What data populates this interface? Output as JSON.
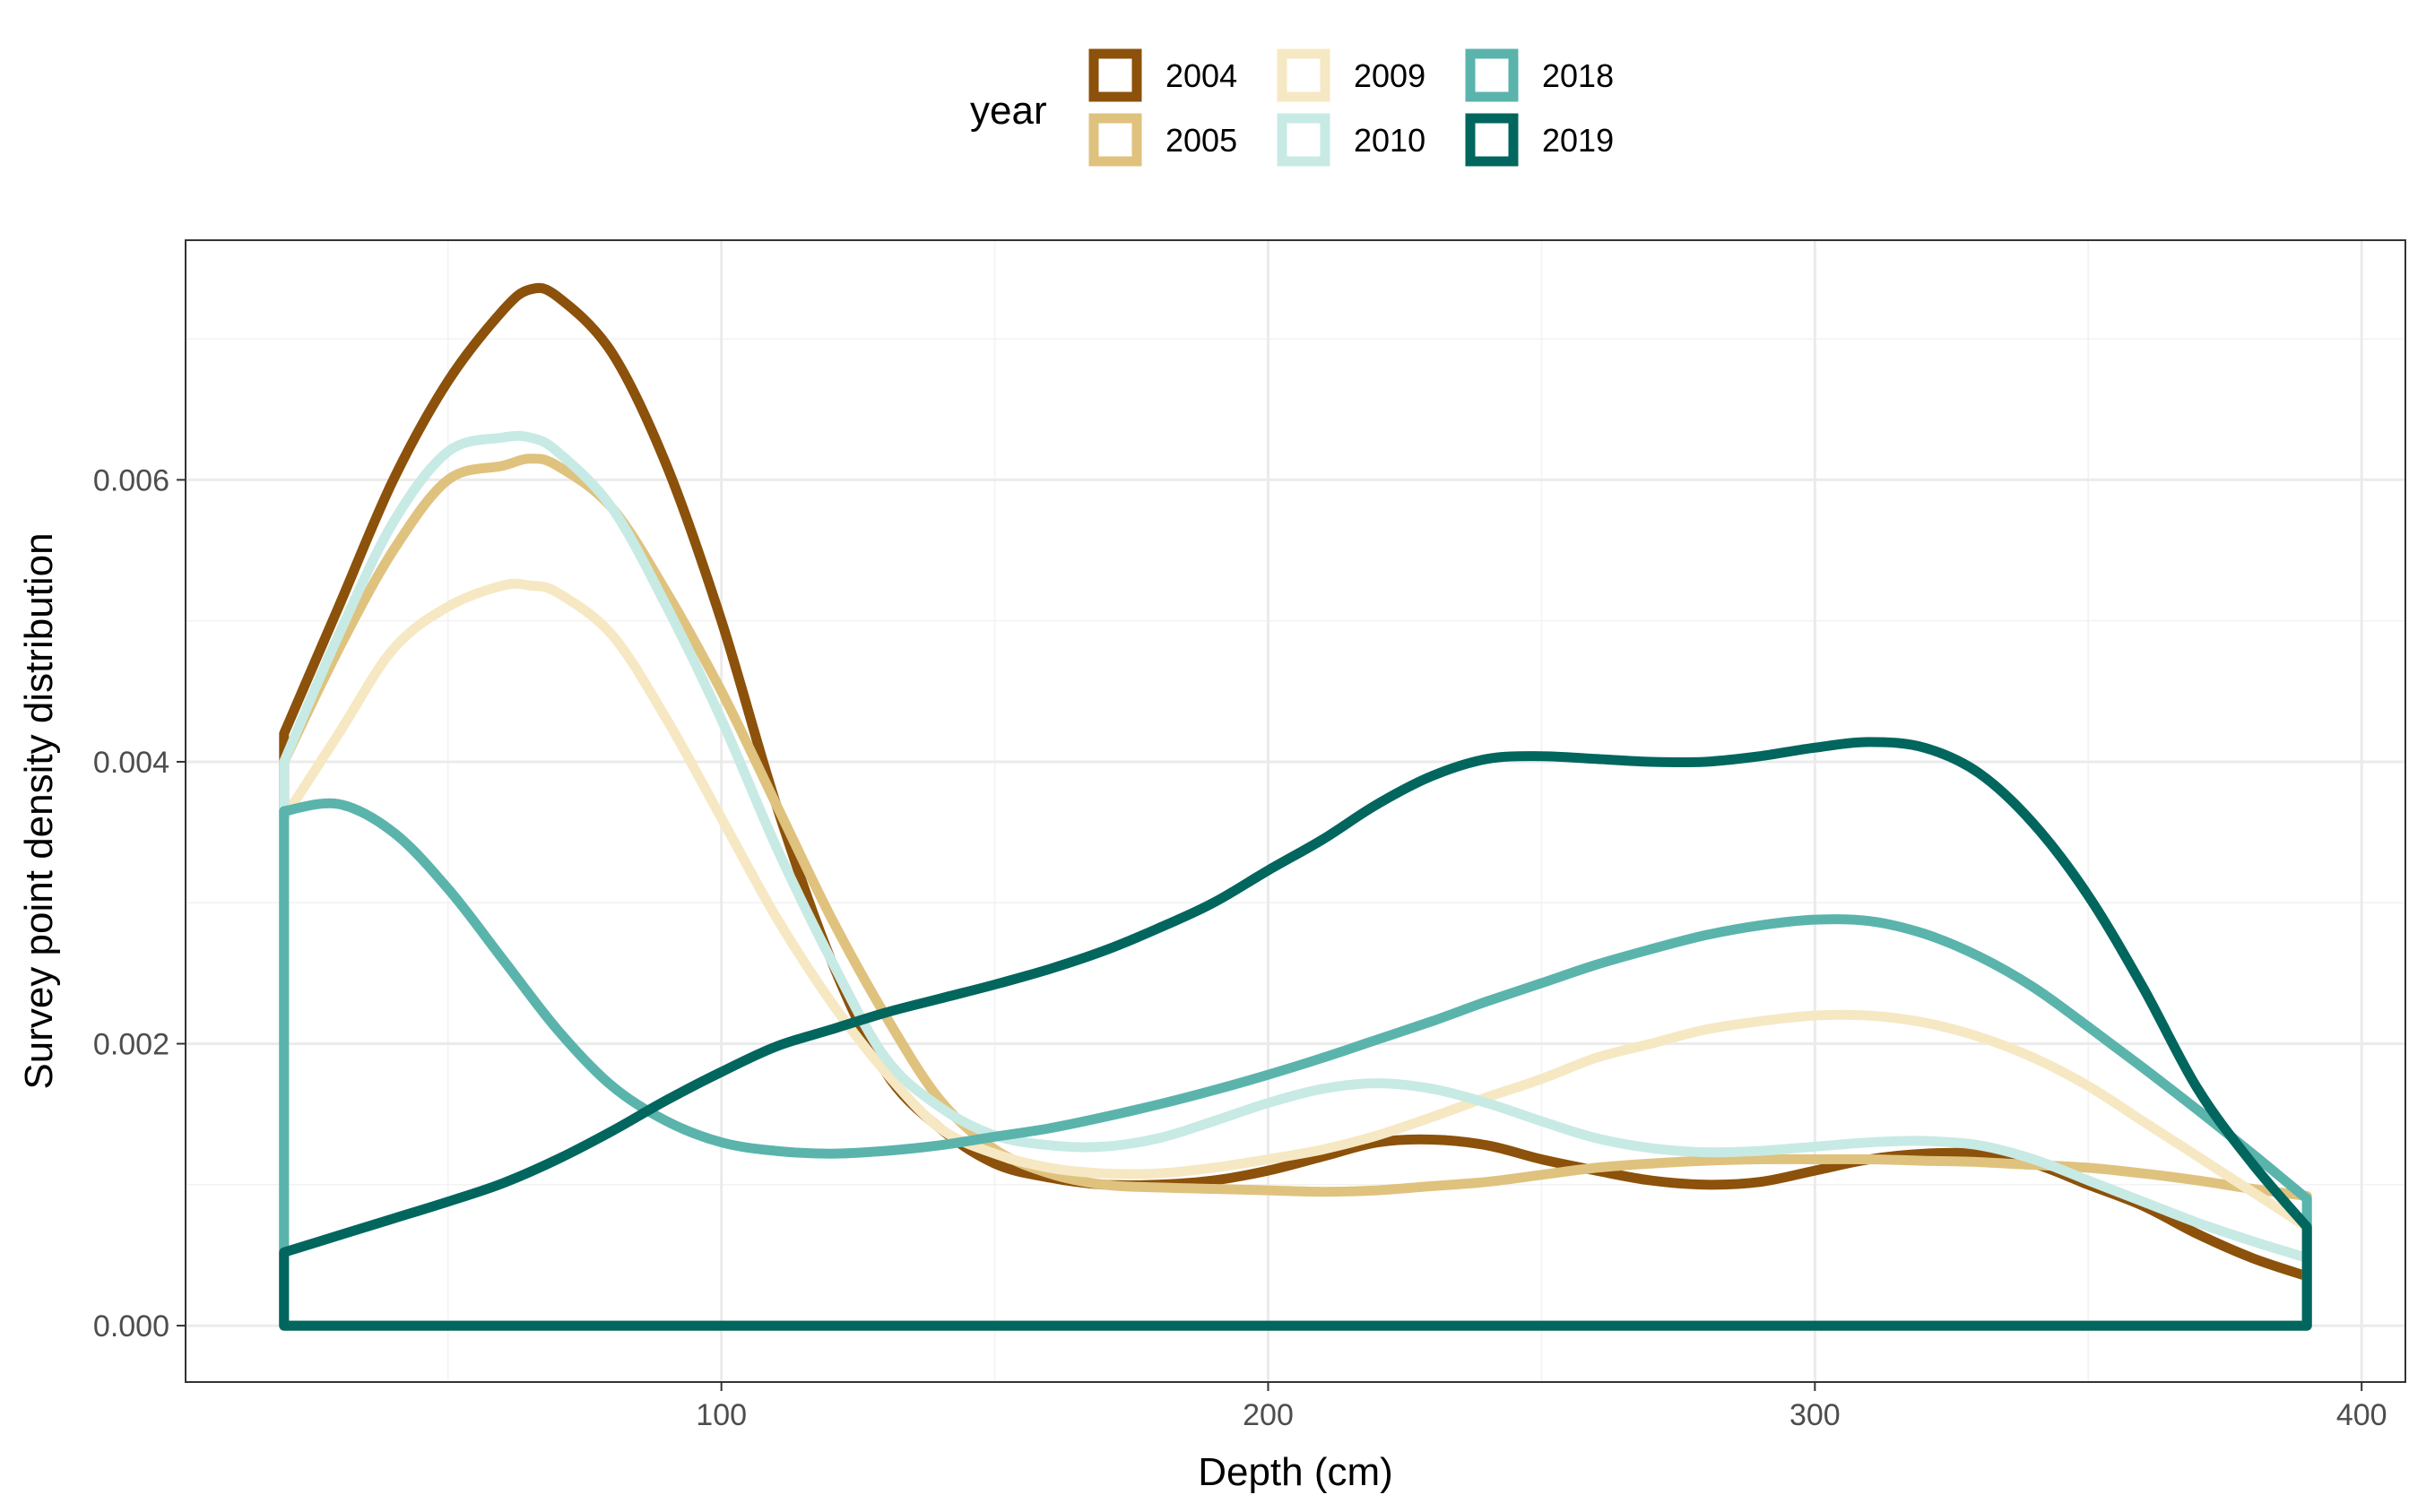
{
  "chart_data": {
    "type": "area",
    "title": "",
    "xlabel": "Depth (cm)",
    "ylabel": "Survey point density distribution",
    "xlim": [
      2,
      408
    ],
    "ylim": [
      -0.0004,
      0.0077
    ],
    "x_ticks": [
      100,
      200,
      300,
      400
    ],
    "x_tick_labels": [
      "100",
      "200",
      "300",
      "400"
    ],
    "y_ticks": [
      0.0,
      0.002,
      0.004,
      0.006
    ],
    "y_tick_labels": [
      "0.000",
      "0.002",
      "0.004",
      "0.006"
    ],
    "grid": true,
    "legend": {
      "title": "year",
      "position": "top"
    },
    "series": [
      {
        "name": "2004",
        "color": "#8c510a",
        "x": [
          20,
          30,
          40,
          50,
          60,
          65,
          70,
          80,
          90,
          100,
          110,
          120,
          130,
          140,
          150,
          160,
          170,
          180,
          190,
          200,
          210,
          220,
          230,
          240,
          250,
          260,
          270,
          280,
          290,
          300,
          310,
          320,
          330,
          340,
          350,
          360,
          370,
          380,
          390
        ],
        "y": [
          0.0042,
          0.0051,
          0.006,
          0.0067,
          0.0072,
          0.00735,
          0.0073,
          0.0069,
          0.0061,
          0.005,
          0.0037,
          0.0026,
          0.0018,
          0.0014,
          0.00115,
          0.00105,
          0.001,
          0.001,
          0.00103,
          0.0011,
          0.0012,
          0.0013,
          0.00132,
          0.00128,
          0.00118,
          0.0011,
          0.00103,
          0.001,
          0.00102,
          0.0011,
          0.00118,
          0.00122,
          0.00122,
          0.00115,
          0.001,
          0.00085,
          0.00065,
          0.00048,
          0.00035
        ]
      },
      {
        "name": "2005",
        "color": "#dfc27d",
        "x": [
          20,
          30,
          40,
          50,
          60,
          65,
          70,
          80,
          90,
          100,
          110,
          120,
          130,
          140,
          150,
          160,
          170,
          180,
          190,
          200,
          210,
          220,
          230,
          240,
          250,
          260,
          270,
          280,
          290,
          300,
          310,
          320,
          330,
          340,
          350,
          360,
          370,
          380,
          390
        ],
        "y": [
          0.004,
          0.0048,
          0.0055,
          0.006,
          0.0061,
          0.00615,
          0.0061,
          0.0058,
          0.0052,
          0.0045,
          0.0037,
          0.0029,
          0.0022,
          0.0016,
          0.00125,
          0.00108,
          0.001,
          0.00098,
          0.00097,
          0.00096,
          0.00095,
          0.00096,
          0.00099,
          0.00102,
          0.00107,
          0.00112,
          0.00115,
          0.00117,
          0.00118,
          0.00118,
          0.00118,
          0.00117,
          0.00116,
          0.00114,
          0.00112,
          0.00108,
          0.00103,
          0.00097,
          0.00092
        ]
      },
      {
        "name": "2009",
        "color": "#f6e8c3",
        "x": [
          20,
          30,
          40,
          50,
          60,
          65,
          70,
          80,
          90,
          100,
          110,
          120,
          130,
          140,
          150,
          160,
          170,
          180,
          190,
          200,
          210,
          220,
          230,
          240,
          250,
          260,
          270,
          280,
          290,
          300,
          310,
          320,
          330,
          340,
          350,
          360,
          370,
          380,
          390
        ],
        "y": [
          0.0036,
          0.0042,
          0.0048,
          0.0051,
          0.00525,
          0.00525,
          0.0052,
          0.0049,
          0.0043,
          0.0036,
          0.0029,
          0.0023,
          0.0018,
          0.0014,
          0.00122,
          0.00112,
          0.00108,
          0.00108,
          0.00112,
          0.00118,
          0.00125,
          0.00135,
          0.00148,
          0.00162,
          0.00175,
          0.0019,
          0.002,
          0.0021,
          0.00216,
          0.0022,
          0.0022,
          0.00215,
          0.00205,
          0.0019,
          0.0017,
          0.00145,
          0.0012,
          0.00095,
          0.0007
        ]
      },
      {
        "name": "2010",
        "color": "#c7eae5",
        "x": [
          20,
          30,
          40,
          50,
          60,
          65,
          70,
          80,
          90,
          100,
          110,
          120,
          130,
          140,
          150,
          160,
          170,
          180,
          190,
          200,
          210,
          220,
          230,
          240,
          250,
          260,
          270,
          280,
          290,
          300,
          310,
          320,
          330,
          340,
          350,
          360,
          370,
          380,
          390
        ],
        "y": [
          0.004,
          0.0049,
          0.0057,
          0.0062,
          0.0063,
          0.0063,
          0.0062,
          0.0058,
          0.0051,
          0.0043,
          0.0034,
          0.0026,
          0.0019,
          0.00155,
          0.00135,
          0.00128,
          0.00127,
          0.00133,
          0.00145,
          0.00158,
          0.00168,
          0.00172,
          0.00168,
          0.00158,
          0.00145,
          0.00133,
          0.00126,
          0.00123,
          0.00124,
          0.00127,
          0.0013,
          0.00131,
          0.00128,
          0.00118,
          0.00103,
          0.00088,
          0.00073,
          0.0006,
          0.00048
        ]
      },
      {
        "name": "2018",
        "color": "#5ab4ac",
        "x": [
          20,
          30,
          40,
          50,
          60,
          70,
          80,
          90,
          100,
          110,
          120,
          130,
          140,
          150,
          160,
          170,
          180,
          190,
          200,
          210,
          220,
          230,
          240,
          250,
          260,
          270,
          280,
          290,
          300,
          310,
          320,
          330,
          340,
          350,
          360,
          370,
          380,
          390
        ],
        "y": [
          0.00365,
          0.0037,
          0.0035,
          0.0031,
          0.0026,
          0.0021,
          0.0017,
          0.00145,
          0.0013,
          0.00124,
          0.00122,
          0.00124,
          0.00128,
          0.00134,
          0.0014,
          0.00148,
          0.00157,
          0.00167,
          0.00178,
          0.0019,
          0.00203,
          0.00216,
          0.0023,
          0.00243,
          0.00256,
          0.00267,
          0.00277,
          0.00284,
          0.00288,
          0.00287,
          0.00278,
          0.00262,
          0.0024,
          0.00212,
          0.00183,
          0.00153,
          0.00122,
          0.0009
        ]
      },
      {
        "name": "2019",
        "color": "#01665e",
        "x": [
          20,
          30,
          40,
          50,
          60,
          70,
          80,
          90,
          100,
          110,
          120,
          130,
          140,
          150,
          160,
          170,
          180,
          190,
          200,
          210,
          220,
          230,
          240,
          250,
          260,
          270,
          280,
          290,
          300,
          310,
          320,
          330,
          340,
          350,
          360,
          370,
          380,
          390
        ],
        "y": [
          0.00052,
          0.00064,
          0.00076,
          0.00088,
          0.00101,
          0.00118,
          0.00138,
          0.0016,
          0.0018,
          0.00198,
          0.0021,
          0.00222,
          0.00232,
          0.00242,
          0.00253,
          0.00266,
          0.00282,
          0.003,
          0.00323,
          0.00345,
          0.0037,
          0.0039,
          0.00402,
          0.00404,
          0.00402,
          0.004,
          0.004,
          0.00404,
          0.0041,
          0.00414,
          0.0041,
          0.00392,
          0.00356,
          0.00305,
          0.0024,
          0.00168,
          0.00115,
          0.0007
        ]
      }
    ]
  }
}
